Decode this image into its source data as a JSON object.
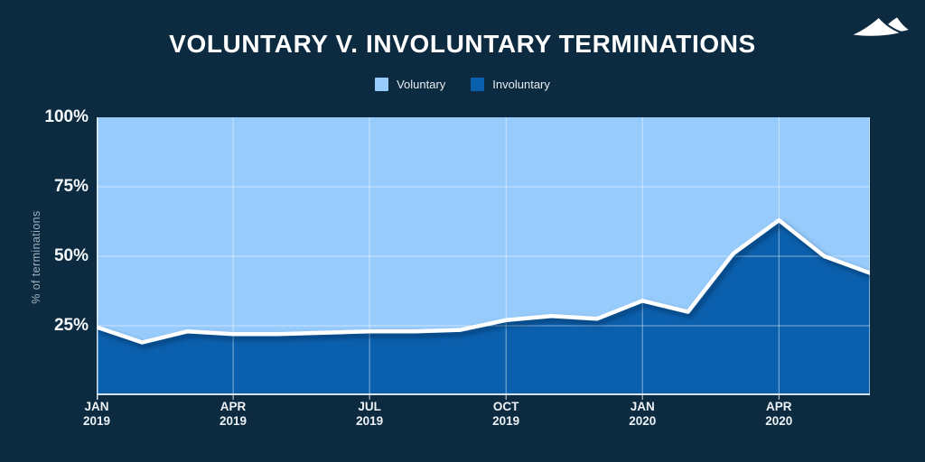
{
  "header": {
    "title": "VOLUNTARY V. INVOLUNTARY TERMINATIONS",
    "logo": "dunes-logo"
  },
  "colors": {
    "background": "#0C2A40",
    "voluntary_fill": "#97CBFB",
    "involuntary_fill": "#0B60AE",
    "line": "#FFFFFF",
    "grid": "rgba(255,255,255,0.5)",
    "axis": "rgba(235,242,247,0.9)",
    "tick_label": "#F6F9FB",
    "axis_title": "#9FB2BF",
    "logo_fill": "#FFFFFF"
  },
  "chart_data": {
    "type": "area",
    "stacked": true,
    "title": "VOLUNTARY V. INVOLUNTARY TERMINATIONS",
    "xlabel": "",
    "ylabel": "% of terminations",
    "ylim": [
      0,
      100
    ],
    "grid": true,
    "legend_position": "top-center",
    "x": [
      "JAN 2019",
      "FEB 2019",
      "MAR 2019",
      "APR 2019",
      "MAY 2019",
      "JUN 2019",
      "JUL 2019",
      "AUG 2019",
      "SEP 2019",
      "OCT 2019",
      "NOV 2019",
      "DEC 2019",
      "JAN 2020",
      "FEB 2020",
      "MAR 2020",
      "APR 2020",
      "MAY 2020",
      "JUN 2020"
    ],
    "series": [
      {
        "name": "Voluntary",
        "color": "#97CBFB",
        "values": [
          75.5,
          81,
          77,
          78,
          78,
          77.5,
          77,
          77,
          76.5,
          73,
          71.5,
          72.5,
          66,
          70,
          49,
          37,
          50,
          56
        ]
      },
      {
        "name": "Involuntary",
        "color": "#0B60AE",
        "values": [
          24.5,
          19,
          23,
          22,
          22,
          22.5,
          23,
          23,
          23.5,
          27,
          28.5,
          27.5,
          34,
          30,
          51,
          63,
          50,
          44
        ]
      }
    ],
    "y_ticks": [
      {
        "value": 100,
        "label": "100%"
      },
      {
        "value": 75,
        "label": "75%"
      },
      {
        "value": 50,
        "label": "50%"
      },
      {
        "value": 25,
        "label": "25%"
      }
    ],
    "x_ticks": [
      {
        "index": 0,
        "month": "JAN",
        "year": "2019"
      },
      {
        "index": 3,
        "month": "APR",
        "year": "2019"
      },
      {
        "index": 6,
        "month": "JUL",
        "year": "2019"
      },
      {
        "index": 9,
        "month": "OCT",
        "year": "2019"
      },
      {
        "index": 12,
        "month": "JAN",
        "year": "2020"
      },
      {
        "index": 15,
        "month": "APR",
        "year": "2020"
      }
    ]
  }
}
